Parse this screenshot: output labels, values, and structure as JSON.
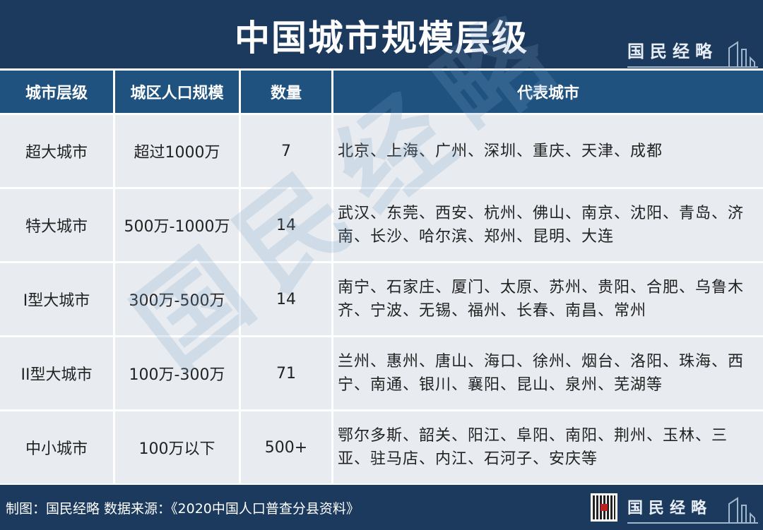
{
  "title": "中国城市规模层级",
  "brand": "国民经略",
  "table": {
    "headers": [
      "城市层级",
      "城区人口规模",
      "数量",
      "代表城市"
    ],
    "rows": [
      {
        "level": "超大城市",
        "population": "超过1000万",
        "count": "7",
        "cities": "北京、上海、广州、深圳、重庆、天津、成都"
      },
      {
        "level": "特大城市",
        "population": "500万-1000万",
        "count": "14",
        "cities": "武汉、东莞、西安、杭州、佛山、南京、沈阳、青岛、济南、长沙、哈尔滨、郑州、昆明、大连"
      },
      {
        "level": "I型大城市",
        "population": "300万-500万",
        "count": "14",
        "cities": "南宁、石家庄、厦门、太原、苏州、贵阳、合肥、乌鲁木齐、宁波、无锡、福州、长春、南昌、常州"
      },
      {
        "level": "II型大城市",
        "population": "100万-300万",
        "count": "71",
        "cities": "兰州、惠州、唐山、海口、徐州、烟台、洛阳、珠海、西宁、南通、银川、襄阳、昆山、泉州、芜湖等"
      },
      {
        "level": "中小城市",
        "population": "100万以下",
        "count": "500+",
        "cities": "鄂尔多斯、韶关、阳江、阜阳、南阳、荆州、玉林、三亚、驻马店、内江、石河子、安庆等"
      }
    ]
  },
  "footer": {
    "credit": "制图：国民经略  数据来源：《2020中国人口普查分县资料》"
  },
  "colors": {
    "title_bg": "#1c3a5d",
    "header_bg": "#1f527f",
    "cell_bg": "#e8ecf0"
  }
}
